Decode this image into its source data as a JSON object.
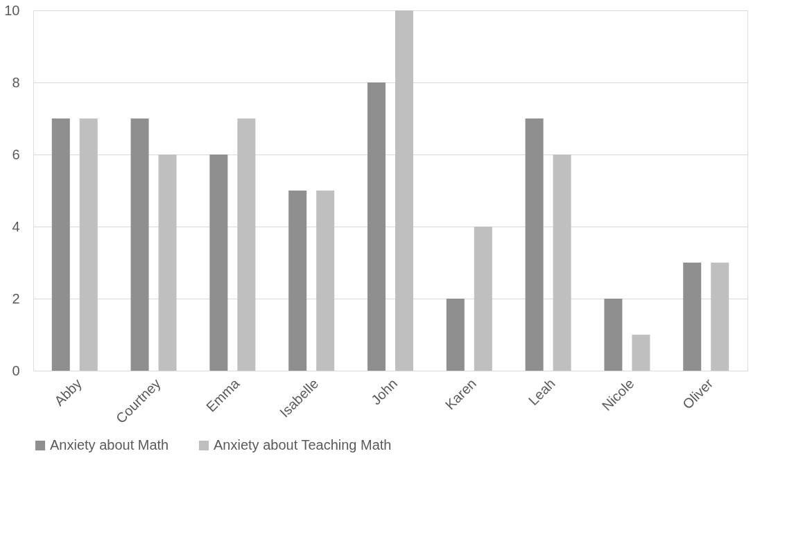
{
  "chart_data": {
    "type": "bar",
    "categories": [
      "Abby",
      "Courtney",
      "Emma",
      "Isabelle",
      "John",
      "Karen",
      "Leah",
      "Nicole",
      "Oliver"
    ],
    "series": [
      {
        "name": "Anxiety about Math",
        "color": "#8f8f8f",
        "values": [
          7,
          7,
          6,
          5,
          8,
          2,
          7,
          2,
          3
        ]
      },
      {
        "name": "Anxiety about Teaching Math",
        "color": "#bfbfbf",
        "values": [
          7,
          6,
          7,
          5,
          10,
          4,
          6,
          1,
          3
        ]
      }
    ],
    "ylim": [
      0,
      10
    ],
    "yticks": [
      0,
      2,
      4,
      6,
      8,
      10
    ],
    "grid": "y",
    "legend": "bottom"
  }
}
